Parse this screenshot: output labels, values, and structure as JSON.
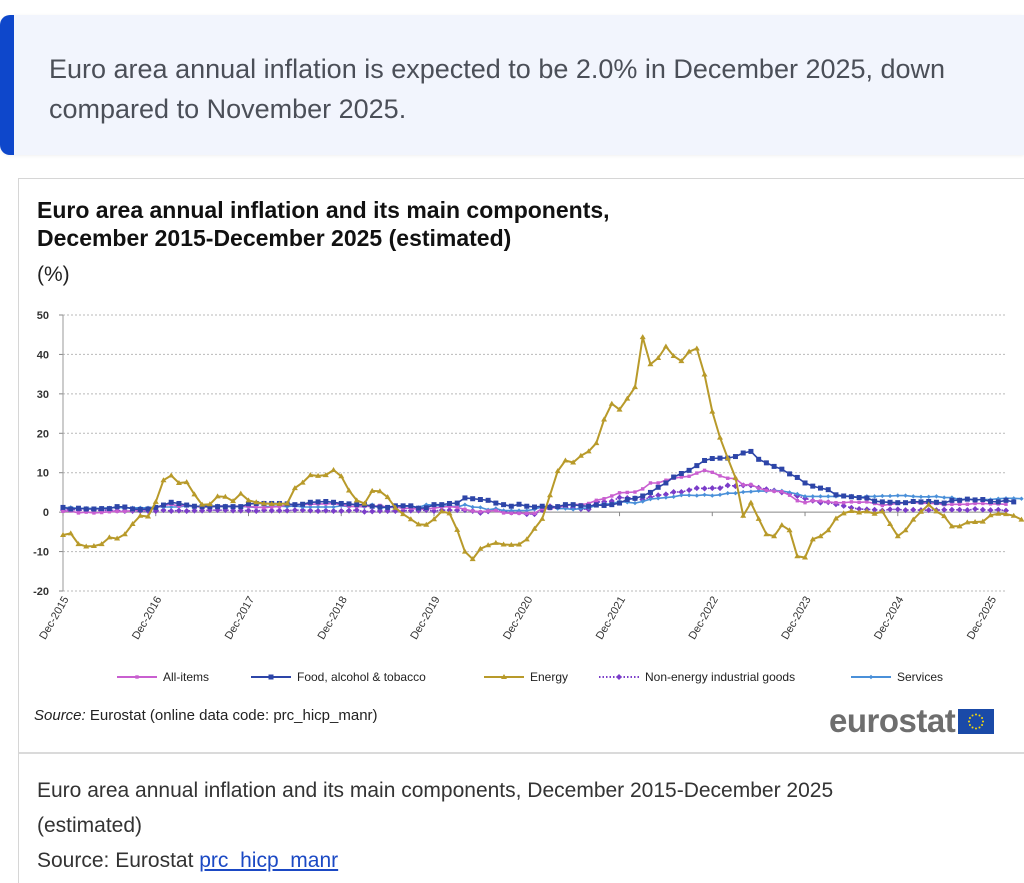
{
  "callout": {
    "text": "Euro area annual inflation is expected to be 2.0% in December 2025, down compared to November 2025.",
    "accent_color": "#0e47cb"
  },
  "figure": {
    "title_line1": "Euro area annual inflation and its main components,",
    "title_line2": "December 2015-December 2025 (estimated)",
    "unit": "(%)",
    "source_label": "Source:",
    "source_text": " Eurostat (online data code: prc_hicp_manr)",
    "logo_text": "eurostat",
    "caption_line": "Euro area annual inflation and its main components, December 2015-December 2025 (estimated)",
    "caption_source_prefix": "Source: Eurostat ",
    "caption_source_link": "prc_hicp_manr"
  },
  "chart_data": {
    "type": "line",
    "title": "Euro area annual inflation and its main components, December 2015-December 2025 (estimated)",
    "ylabel": "(%)",
    "xlabel": "",
    "ylim": [
      -20,
      50
    ],
    "yticks": [
      50,
      40,
      30,
      20,
      10,
      0,
      -10,
      -20
    ],
    "grid": true,
    "legend_position": "bottom",
    "x_start": "Dec-2015",
    "x_end": "Dec-2025",
    "x_frequency": "monthly",
    "xtick_labels": [
      "Dec-2015",
      "Dec-2016",
      "Dec-2017",
      "Dec-2018",
      "Dec-2019",
      "Dec-2020",
      "Dec-2021",
      "Dec-2022",
      "Dec-2023",
      "Dec-2024",
      "Dec-2025"
    ],
    "series": [
      {
        "name": "All-items",
        "color": "#c95fd0",
        "marker": "square-small",
        "dash": "solid",
        "values": [
          0.2,
          0.3,
          -0.2,
          0.0,
          -0.2,
          -0.1,
          0.1,
          0.2,
          0.2,
          0.4,
          0.5,
          0.6,
          1.1,
          1.7,
          2.0,
          1.5,
          1.9,
          1.4,
          1.3,
          1.3,
          1.5,
          1.5,
          1.4,
          1.5,
          1.4,
          1.3,
          1.1,
          1.3,
          1.4,
          1.9,
          1.9,
          2.0,
          2.0,
          2.1,
          2.1,
          2.2,
          1.9,
          1.5,
          1.4,
          1.5,
          1.4,
          1.7,
          1.2,
          1.3,
          1.0,
          1.0,
          0.7,
          0.8,
          1.0,
          1.3,
          1.4,
          1.2,
          0.7,
          0.3,
          0.1,
          0.3,
          0.4,
          -0.2,
          -0.3,
          -0.3,
          -0.3,
          -0.3,
          0.9,
          0.9,
          1.3,
          1.6,
          2.0,
          1.9,
          2.2,
          3.0,
          3.4,
          4.1,
          4.9,
          5.0,
          5.1,
          5.9,
          7.4,
          7.4,
          8.1,
          8.6,
          8.9,
          9.1,
          9.9,
          10.6,
          10.1,
          9.2,
          8.6,
          8.5,
          6.9,
          7.0,
          6.1,
          5.5,
          5.3,
          5.2,
          4.3,
          2.9,
          2.4,
          2.9,
          2.8,
          2.6,
          2.4,
          2.4,
          2.6,
          2.5,
          2.6,
          2.2,
          1.7,
          2.0,
          2.2,
          2.4,
          2.5,
          2.3,
          2.2,
          2.2,
          1.9,
          2.0,
          2.0,
          2.0,
          2.2,
          2.2,
          2.1,
          2.1,
          2.0
        ],
        "label_note": "monthly values estimated from chart"
      },
      {
        "name": "Food, alcohol & tobacco",
        "color": "#2d45a8",
        "marker": "square",
        "dash": "solid",
        "values": [
          1.2,
          0.8,
          1.0,
          0.8,
          0.8,
          0.9,
          0.9,
          1.4,
          1.3,
          0.8,
          0.7,
          0.8,
          1.2,
          1.8,
          2.5,
          2.2,
          1.8,
          1.5,
          1.4,
          1.4,
          1.4,
          1.4,
          1.4,
          1.4,
          2.1,
          2.2,
          2.2,
          2.2,
          2.2,
          2.1,
          1.9,
          2.0,
          2.5,
          2.6,
          2.7,
          2.5,
          2.2,
          2.1,
          1.9,
          1.9,
          1.5,
          1.3,
          1.2,
          1.6,
          1.6,
          1.6,
          1.0,
          1.1,
          1.9,
          1.9,
          2.2,
          2.3,
          3.6,
          3.4,
          3.2,
          3.0,
          2.3,
          1.9,
          1.5,
          2.0,
          1.5,
          1.3,
          1.5,
          1.2,
          1.4,
          1.9,
          1.9,
          1.6,
          1.5,
          1.8,
          1.7,
          1.9,
          2.3,
          3.2,
          3.5,
          4.1,
          5.0,
          6.3,
          7.4,
          8.9,
          9.8,
          10.6,
          11.8,
          13.1,
          13.6,
          13.7,
          13.7,
          14.1,
          15.0,
          15.4,
          13.4,
          12.5,
          11.6,
          10.9,
          9.7,
          8.8,
          7.4,
          6.6,
          6.1,
          5.7,
          4.4,
          4.1,
          3.9,
          3.7,
          3.6,
          2.8,
          2.6,
          2.5,
          2.4,
          2.4,
          2.7,
          2.6,
          2.7,
          2.5,
          2.3,
          3.0,
          3.0,
          3.3,
          3.1,
          3.2,
          2.7,
          2.6,
          3.0,
          2.6
        ]
      },
      {
        "name": "Energy",
        "color": "#b89a2a",
        "marker": "triangle",
        "dash": "solid",
        "values": [
          -5.8,
          -5.4,
          -8.1,
          -8.7,
          -8.6,
          -8.1,
          -6.4,
          -6.7,
          -5.6,
          -3.0,
          -0.9,
          -1.1,
          2.6,
          8.1,
          9.3,
          7.4,
          7.6,
          4.5,
          1.9,
          2.0,
          4.0,
          3.9,
          2.8,
          4.7,
          3.0,
          2.5,
          2.2,
          2.1,
          2.1,
          2.2,
          6.1,
          7.5,
          9.4,
          9.2,
          9.4,
          10.7,
          9.1,
          5.5,
          3.0,
          2.2,
          5.4,
          5.3,
          3.8,
          1.1,
          -0.5,
          -1.8,
          -3.1,
          -3.2,
          -1.8,
          0.2,
          -0.3,
          -4.5,
          -10.0,
          -11.9,
          -9.3,
          -8.4,
          -7.8,
          -8.2,
          -8.3,
          -8.2,
          -6.9,
          -4.2,
          -1.7,
          4.3,
          10.4,
          13.1,
          12.6,
          14.3,
          15.4,
          17.5,
          23.5,
          27.5,
          26.0,
          28.8,
          31.7,
          44.4,
          37.5,
          39.1,
          42.0,
          39.6,
          38.3,
          40.7,
          41.5,
          34.9,
          25.5,
          18.9,
          13.7,
          8.7,
          -0.9,
          2.4,
          -1.7,
          -5.6,
          -6.1,
          -3.3,
          -4.6,
          -11.2,
          -11.5,
          -6.9,
          -6.1,
          -4.6,
          -1.6,
          -0.3,
          0.3,
          -0.1,
          0.2,
          -0.4,
          0.2,
          -3.0,
          -6.1,
          -4.6,
          -1.9,
          0.1,
          1.9,
          0.2,
          -1.0,
          -3.6,
          -3.6,
          -2.6,
          -2.5,
          -2.4,
          -0.8,
          -0.4,
          -0.5,
          -0.9,
          -1.9
        ]
      },
      {
        "name": "Non-energy industrial goods",
        "color": "#7a3cc9",
        "marker": "diamond",
        "dash": "dotted",
        "values": [
          0.5,
          0.7,
          0.5,
          0.5,
          0.5,
          0.4,
          0.5,
          0.4,
          0.3,
          0.3,
          0.3,
          0.3,
          0.3,
          0.5,
          0.3,
          0.4,
          0.3,
          0.4,
          0.4,
          0.5,
          0.5,
          0.5,
          0.4,
          0.4,
          0.4,
          0.3,
          0.5,
          0.4,
          0.4,
          0.4,
          0.5,
          0.5,
          0.4,
          0.3,
          0.4,
          0.3,
          0.3,
          0.4,
          0.5,
          0.1,
          0.2,
          0.3,
          0.3,
          0.3,
          0.4,
          0.4,
          0.4,
          0.5,
          0.3,
          0.5,
          0.5,
          0.5,
          0.5,
          0.3,
          -0.2,
          0.2,
          0.7,
          0.2,
          -0.1,
          -0.1,
          -0.5,
          -0.5,
          0.5,
          1.5,
          1.3,
          1.2,
          1.0,
          0.8,
          0.7,
          2.6,
          2.6,
          2.8,
          3.7,
          3.6,
          3.5,
          3.1,
          3.8,
          4.3,
          4.5,
          5.1,
          5.1,
          5.6,
          6.1,
          6.0,
          6.1,
          6.1,
          6.8,
          6.6,
          6.8,
          6.8,
          6.2,
          5.8,
          5.5,
          5.0,
          4.7,
          4.1,
          3.5,
          2.9,
          2.4,
          2.5,
          2.0,
          1.6,
          1.1,
          0.8,
          0.7,
          0.6,
          0.4,
          0.7,
          0.7,
          0.5,
          0.6,
          0.5,
          0.5,
          0.5,
          0.6,
          0.6,
          0.6,
          0.5,
          0.8,
          0.6,
          0.5,
          0.6,
          0.4
        ]
      },
      {
        "name": "Services",
        "color": "#4a90d9",
        "marker": "diamond-small",
        "dash": "solid",
        "values": [
          1.1,
          1.2,
          0.9,
          1.0,
          0.9,
          1.0,
          1.1,
          1.2,
          1.1,
          1.1,
          1.1,
          1.1,
          1.3,
          1.3,
          1.3,
          1.3,
          1.6,
          1.3,
          1.6,
          1.5,
          1.6,
          1.6,
          1.5,
          1.5,
          1.3,
          1.2,
          1.3,
          1.5,
          1.5,
          1.4,
          1.6,
          1.3,
          1.3,
          1.3,
          1.3,
          1.3,
          1.6,
          1.4,
          1.5,
          1.3,
          1.9,
          1.0,
          1.3,
          1.1,
          1.5,
          1.5,
          1.2,
          1.9,
          1.8,
          1.5,
          1.6,
          1.3,
          1.9,
          1.3,
          1.2,
          0.6,
          0.9,
          0.4,
          0.4,
          0.4,
          0.4,
          0.7,
          1.4,
          1.3,
          0.9,
          0.9,
          0.7,
          0.9,
          1.1,
          1.7,
          2.1,
          2.1,
          2.7,
          2.5,
          2.3,
          2.7,
          3.3,
          3.5,
          3.7,
          3.9,
          4.3,
          4.3,
          4.2,
          4.4,
          4.2,
          4.4,
          4.8,
          4.8,
          5.1,
          5.2,
          5.4,
          5.3,
          5.5,
          5.4,
          5.0,
          4.6,
          4.0,
          4.0,
          4.0,
          4.0,
          4.0,
          4.1,
          4.1,
          3.7,
          4.0,
          4.0,
          4.1,
          4.1,
          4.2,
          4.2,
          4.0,
          3.9,
          3.9,
          4.0,
          3.7,
          3.7,
          3.2,
          3.3,
          3.1,
          3.2,
          3.2,
          3.4,
          3.5,
          3.5,
          3.4
        ]
      }
    ]
  }
}
